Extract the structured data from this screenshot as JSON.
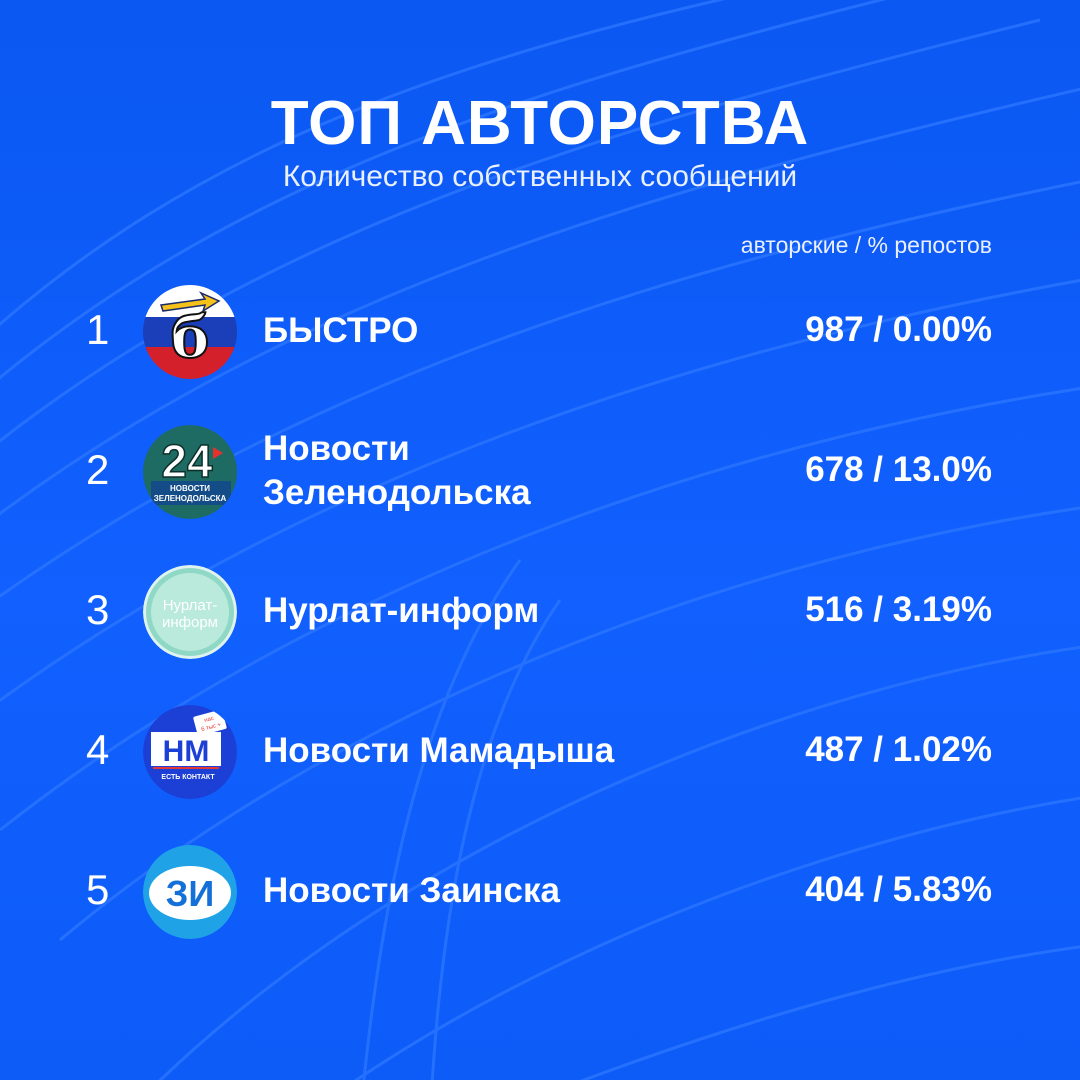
{
  "header": {
    "title": "ТОП АВТОРСТВА",
    "subtitle": "Количество собственных сообщений",
    "column_label": "авторские / % репостов"
  },
  "rows": [
    {
      "rank": "1",
      "name": "БЫСТРО",
      "name_line2": "",
      "value": "987 / 0.00%",
      "logo": "bystro-logo"
    },
    {
      "rank": "2",
      "name": "Новости",
      "name_line2": "Зеленодольска",
      "value": "678 / 13.0%",
      "logo": "zelenodolsk-24-logo",
      "logo_text": "24",
      "logo_caption_1": "НОВОСТИ",
      "logo_caption_2": "ЗЕЛЕНОДОЛЬСКА"
    },
    {
      "rank": "3",
      "name": "Нурлат-информ",
      "name_line2": "",
      "value": "516 / 3.19%",
      "logo": "nurlat-inform-logo",
      "logo_text_1": "Нурлат-",
      "logo_text_2": "информ"
    },
    {
      "rank": "4",
      "name": "Новости Мамадыша",
      "name_line2": "",
      "value": "487 / 1.02%",
      "logo": "mamadysh-nm-logo",
      "logo_text": "НМ",
      "logo_caption": "ЕСТЬ КОНТАКТ",
      "logo_badge_1": "нас",
      "logo_badge_2": "6 тыс +"
    },
    {
      "rank": "5",
      "name": "Новости Заинска",
      "name_line2": "",
      "value": "404 / 5.83%",
      "logo": "zainsk-zi-logo",
      "logo_text": "ЗИ"
    }
  ],
  "colors": {
    "background": "#0b5cf5",
    "text": "#ffffff"
  }
}
